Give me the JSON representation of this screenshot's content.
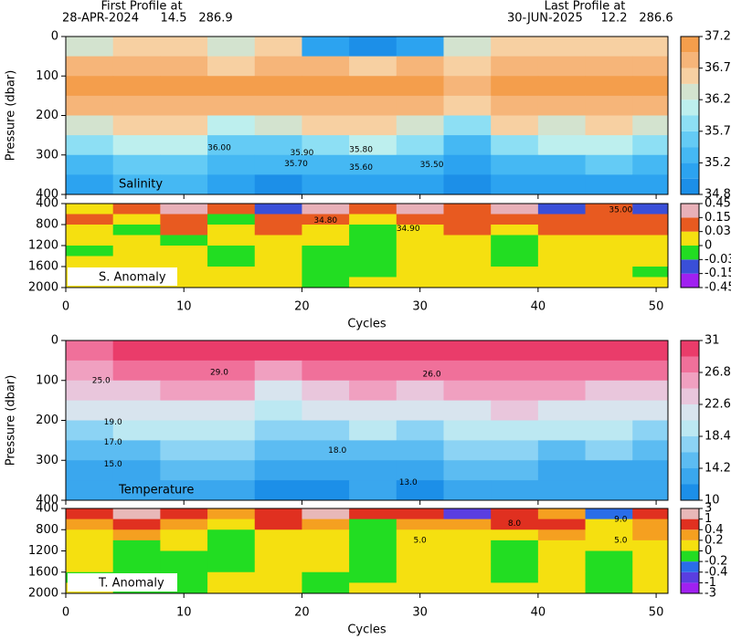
{
  "header": {
    "first_title": "First Profile at",
    "first_date": "28-APR-2024",
    "first_lat": "14.5",
    "first_lon": "286.9",
    "last_title": "Last Profile at",
    "last_date": "30-JUN-2025",
    "last_lat": "12.2",
    "last_lon": "286.6"
  },
  "chart_data": [
    {
      "type": "heatmap",
      "label": "Salinity",
      "ylabel": "Pressure (dbar)",
      "xlim": [
        0,
        51
      ],
      "xticks": [
        0,
        10,
        20,
        30,
        40,
        50
      ],
      "ylim": [
        0,
        400
      ],
      "yticks": [
        0,
        100,
        200,
        300,
        400
      ],
      "x": [
        0,
        4,
        8,
        12,
        16,
        20,
        24,
        28,
        32,
        36,
        40,
        44,
        48
      ],
      "y": [
        0,
        50,
        100,
        150,
        200,
        250,
        300,
        350
      ],
      "z": [
        [
          36.4,
          36.5,
          36.5,
          36.3,
          36.6,
          35.1,
          35.0,
          35.2,
          36.4,
          36.6,
          36.5,
          36.7,
          36.6
        ],
        [
          36.9,
          36.8,
          36.9,
          36.7,
          36.9,
          36.8,
          36.7,
          36.8,
          36.7,
          36.9,
          36.9,
          36.9,
          36.9
        ],
        [
          37.0,
          37.1,
          37.0,
          37.0,
          37.1,
          37.0,
          37.0,
          37.1,
          36.9,
          37.1,
          37.0,
          37.1,
          37.0
        ],
        [
          36.8,
          36.9,
          36.9,
          36.8,
          36.8,
          36.9,
          36.8,
          36.9,
          36.5,
          36.9,
          36.8,
          36.9,
          36.8
        ],
        [
          36.4,
          36.6,
          36.5,
          36.2,
          36.3,
          36.5,
          36.6,
          36.4,
          35.9,
          36.5,
          36.4,
          36.6,
          36.3
        ],
        [
          35.9,
          36.0,
          36.0,
          35.7,
          35.7,
          35.9,
          36.0,
          35.8,
          35.5,
          35.9,
          36.0,
          36.0,
          35.8
        ],
        [
          35.5,
          35.6,
          35.6,
          35.4,
          35.3,
          35.5,
          35.5,
          35.4,
          35.2,
          35.4,
          35.5,
          35.6,
          35.4
        ],
        [
          35.2,
          35.3,
          35.3,
          35.1,
          35.0,
          35.1,
          35.1,
          35.1,
          35.0,
          35.1,
          35.2,
          35.2,
          35.1
        ]
      ],
      "colorbar": {
        "bounds": [
          34.8,
          35.04,
          35.28,
          35.52,
          35.76,
          36.0,
          36.24,
          36.48,
          36.72,
          36.96,
          37.2
        ],
        "colors": [
          "#1c8fe8",
          "#2ca3f0",
          "#45b8f3",
          "#64cbf5",
          "#8ddff4",
          "#bdefee",
          "#d3e3cf",
          "#f7d0a2",
          "#f6b579",
          "#f49e4c"
        ],
        "ticks": [
          34.8,
          35.28,
          35.76,
          36.24,
          36.72,
          37.2
        ]
      },
      "annotations": [
        {
          "text": "36.00",
          "x": 13,
          "y": 282
        },
        {
          "text": "35.90",
          "x": 20,
          "y": 295
        },
        {
          "text": "35.70",
          "x": 19.5,
          "y": 322
        },
        {
          "text": "35.80",
          "x": 25,
          "y": 287
        },
        {
          "text": "35.60",
          "x": 25,
          "y": 332
        },
        {
          "text": "35.50",
          "x": 31,
          "y": 325
        }
      ]
    },
    {
      "type": "heatmap",
      "label": "S. Anomaly",
      "label_box": true,
      "xlabel": "Cycles",
      "xlim": [
        0,
        51
      ],
      "xticks": [
        0,
        10,
        20,
        30,
        40,
        50
      ],
      "ylim": [
        400,
        2000
      ],
      "yticks": [
        400,
        800,
        1200,
        1600,
        2000
      ],
      "x": [
        0,
        4,
        8,
        12,
        16,
        20,
        24,
        28,
        32,
        36,
        40,
        44,
        48
      ],
      "y": [
        400,
        600,
        800,
        1000,
        1200,
        1400,
        1600,
        1800
      ],
      "z": [
        [
          0.02,
          0.1,
          0.2,
          0.05,
          -0.1,
          0.3,
          0.1,
          0.15,
          0.05,
          0.2,
          -0.05,
          0.1,
          -0.1
        ],
        [
          0.04,
          0.02,
          0.1,
          -0.02,
          0.04,
          0.1,
          0.02,
          0.05,
          0.1,
          0.04,
          0.08,
          0.1,
          0.05
        ],
        [
          0.02,
          -0.01,
          0.04,
          0.01,
          0.05,
          0.02,
          -0.01,
          0.02,
          0.04,
          0.02,
          0.05,
          0.04,
          0.06
        ],
        [
          0.01,
          0.02,
          -0.01,
          0.02,
          0.01,
          0.005,
          -0.01,
          0.01,
          0.02,
          -0.01,
          0.01,
          0.02,
          0.01
        ],
        [
          -0.01,
          0.01,
          0.02,
          -0.01,
          0.01,
          -0.02,
          -0.02,
          0.01,
          0.01,
          -0.01,
          0.01,
          0.02,
          0.01
        ],
        [
          0.01,
          0.02,
          0.01,
          -0.01,
          0.02,
          -0.01,
          -0.02,
          0.02,
          0.01,
          -0.01,
          0.02,
          0.01,
          0.02
        ],
        [
          0.01,
          0.01,
          0.02,
          0.01,
          0.01,
          -0.01,
          -0.01,
          0.01,
          0.02,
          0.01,
          0.02,
          0.01,
          -0.01
        ],
        [
          0.01,
          0.02,
          0.01,
          0.02,
          0.01,
          -0.01,
          0.01,
          0.02,
          0.01,
          0.02,
          0.01,
          0.02,
          0.01
        ]
      ],
      "colorbar": {
        "bounds": [
          -0.45,
          -0.15,
          -0.03,
          0,
          0.03,
          0.15,
          0.45
        ],
        "colors": [
          "#a020f0",
          "#3a4fd8",
          "#22dd22",
          "#f5e010",
          "#e85a20",
          "#e8b0b8"
        ],
        "ticks": [
          -0.45,
          -0.15,
          -0.03,
          0,
          0.03,
          0.15,
          0.45
        ]
      },
      "annotations": [
        {
          "text": "34.80",
          "x": 22,
          "y": 720
        },
        {
          "text": "34.90",
          "x": 29,
          "y": 880
        },
        {
          "text": "35.00",
          "x": 47,
          "y": 520
        }
      ]
    },
    {
      "type": "heatmap",
      "label": "Temperature",
      "ylabel": "Pressure (dbar)",
      "xlim": [
        0,
        51
      ],
      "xticks": [
        0,
        10,
        20,
        30,
        40,
        50
      ],
      "ylim": [
        0,
        400
      ],
      "yticks": [
        0,
        100,
        200,
        300,
        400
      ],
      "x": [
        0,
        4,
        8,
        12,
        16,
        20,
        24,
        28,
        32,
        36,
        40,
        44,
        48
      ],
      "y": [
        0,
        50,
        100,
        150,
        200,
        250,
        300,
        350
      ],
      "z": [
        [
          28.5,
          29,
          29.5,
          30,
          30,
          30.5,
          30.5,
          30,
          29.5,
          29.5,
          29.5,
          29,
          29
        ],
        [
          26.5,
          27,
          27.5,
          28,
          26.5,
          27.5,
          28,
          27.5,
          28,
          28.5,
          27.5,
          27.5,
          27
        ],
        [
          24,
          24.5,
          25,
          25.5,
          22,
          24,
          25,
          24,
          25.5,
          26,
          25,
          24.5,
          24
        ],
        [
          20.5,
          21,
          21.5,
          22,
          19,
          20.5,
          21.5,
          20.5,
          22,
          23,
          21.5,
          21,
          20.5
        ],
        [
          18,
          18.5,
          18.5,
          19,
          16.5,
          17.5,
          18.5,
          17.5,
          19,
          20,
          18.5,
          18.5,
          18
        ],
        [
          16,
          16,
          16.5,
          16.5,
          14.5,
          15.5,
          16,
          15.5,
          16.5,
          17.5,
          16,
          16.5,
          16
        ],
        [
          14,
          14,
          14.5,
          14.5,
          13,
          13.5,
          14,
          13.5,
          14.5,
          15,
          14,
          14,
          14
        ],
        [
          12.5,
          12.5,
          13,
          13,
          11.5,
          12,
          12.5,
          12,
          13,
          13.5,
          12.5,
          12.5,
          12.5
        ]
      ],
      "colorbar": {
        "bounds": [
          10,
          12.1,
          14.2,
          16.3,
          18.4,
          20.5,
          22.6,
          24.7,
          26.8,
          28.9,
          31
        ],
        "colors": [
          "#1c8fe8",
          "#3aa7ee",
          "#5cbcf2",
          "#8cd3f4",
          "#bce8f2",
          "#d8e4ee",
          "#e9c6dc",
          "#f0a0c0",
          "#f0709a",
          "#ea3c6a"
        ],
        "ticks": [
          10,
          14.2,
          18.4,
          22.6,
          26.8,
          31
        ]
      },
      "annotations": [
        {
          "text": "25.0",
          "x": 3,
          "y": 100
        },
        {
          "text": "29.0",
          "x": 13,
          "y": 80
        },
        {
          "text": "26.0",
          "x": 31,
          "y": 85
        },
        {
          "text": "19.0",
          "x": 4,
          "y": 205
        },
        {
          "text": "17.0",
          "x": 4,
          "y": 255
        },
        {
          "text": "15.0",
          "x": 4,
          "y": 310
        },
        {
          "text": "18.0",
          "x": 23,
          "y": 275
        },
        {
          "text": "13.0",
          "x": 29,
          "y": 355
        }
      ]
    },
    {
      "type": "heatmap",
      "label": "T. Anomaly",
      "label_box": true,
      "xlabel": "Cycles",
      "xlim": [
        0,
        51
      ],
      "xticks": [
        0,
        10,
        20,
        30,
        40,
        50
      ],
      "ylim": [
        400,
        2000
      ],
      "yticks": [
        400,
        800,
        1200,
        1600,
        2000
      ],
      "x": [
        0,
        4,
        8,
        12,
        16,
        20,
        24,
        28,
        32,
        36,
        40,
        44,
        48
      ],
      "y": [
        400,
        600,
        800,
        1000,
        1200,
        1400,
        1600,
        1800
      ],
      "z": [
        [
          0.5,
          1.2,
          0.8,
          0.3,
          0.6,
          1.5,
          0.4,
          0.9,
          -0.5,
          0.7,
          0.3,
          -0.3,
          0.6
        ],
        [
          0.3,
          0.5,
          0.3,
          0.1,
          0.4,
          0.2,
          -0.1,
          0.3,
          0.2,
          0.4,
          0.5,
          0.1,
          0.3
        ],
        [
          0.1,
          0.2,
          0.1,
          -0.1,
          0.15,
          0.1,
          -0.1,
          0.1,
          0.1,
          0.05,
          0.3,
          0.1,
          0.2
        ],
        [
          0.1,
          -0.1,
          0.05,
          -0.05,
          0.1,
          0.1,
          -0.1,
          0.05,
          0.1,
          -0.05,
          0.1,
          0.05,
          0.1
        ],
        [
          0.05,
          -0.1,
          -0.05,
          -0.1,
          0.1,
          0.05,
          -0.1,
          0.05,
          0.1,
          -0.05,
          0.05,
          -0.05,
          0.05
        ],
        [
          0.05,
          -0.05,
          -0.1,
          -0.05,
          0.05,
          0.05,
          -0.05,
          0.1,
          0.05,
          -0.05,
          0.05,
          -0.1,
          0.05
        ],
        [
          -0.05,
          -0.05,
          -0.1,
          0.05,
          0.05,
          -0.05,
          -0.05,
          0.1,
          0.1,
          -0.05,
          0.05,
          -0.05,
          0.1
        ],
        [
          0.05,
          -0.05,
          -0.05,
          0.05,
          0.05,
          -0.05,
          0.05,
          0.1,
          0.1,
          0.05,
          0.05,
          -0.05,
          0.1
        ]
      ],
      "colorbar": {
        "bounds": [
          -3,
          -1,
          -0.4,
          -0.2,
          0,
          0.2,
          0.4,
          1,
          3
        ],
        "colors": [
          "#a020f0",
          "#5a3ee0",
          "#2a6de8",
          "#22dd22",
          "#f5e010",
          "#f5a020",
          "#e03020",
          "#e8b8b8"
        ],
        "ticks": [
          -3,
          -1,
          -0.4,
          -0.2,
          0,
          0.2,
          0.4,
          1,
          3
        ]
      },
      "annotations": [
        {
          "text": "5.0",
          "x": 30,
          "y": 1000
        },
        {
          "text": "5.0",
          "x": 47,
          "y": 1000
        },
        {
          "text": "8.0",
          "x": 38,
          "y": 680
        },
        {
          "text": "9.0",
          "x": 47,
          "y": 610
        }
      ]
    }
  ]
}
